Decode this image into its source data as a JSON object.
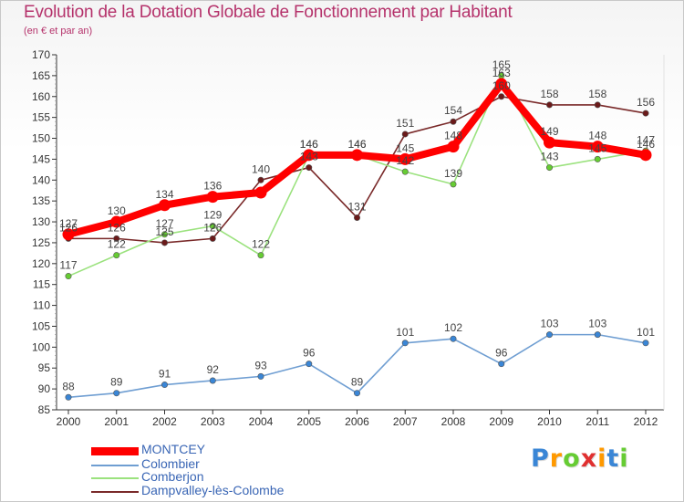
{
  "chart_data": {
    "type": "line",
    "title": "Evolution de la Dotation Globale de Fonctionnement par Habitant",
    "subtitle": "(en € et par an)",
    "categories": [
      "2000",
      "2001",
      "2002",
      "2003",
      "2004",
      "2005",
      "2006",
      "2007",
      "2008",
      "2009",
      "2010",
      "2011",
      "2012"
    ],
    "ylim": [
      85,
      170
    ],
    "yticks": [
      85,
      90,
      95,
      100,
      105,
      110,
      115,
      120,
      125,
      130,
      135,
      140,
      145,
      150,
      155,
      160,
      165,
      170
    ],
    "grid": false,
    "legend_position": "bottom-left",
    "series": [
      {
        "name": "MONTCEY",
        "color": "#ff0000",
        "marker": "#ff0000",
        "values": [
          127,
          130,
          134,
          136,
          137,
          146,
          146,
          145,
          148,
          163,
          149,
          148,
          146
        ],
        "labels": [
          "127",
          "130",
          "134",
          "136",
          "",
          "146",
          "146",
          "145",
          "148",
          "163",
          "149",
          "148",
          "146"
        ]
      },
      {
        "name": "Colombier",
        "color": "#6f9ed2",
        "marker": "#3a86d6",
        "values": [
          88,
          89,
          91,
          92,
          93,
          96,
          89,
          101,
          102,
          96,
          103,
          103,
          101
        ],
        "labels": [
          "88",
          "89",
          "91",
          "92",
          "93",
          "96",
          "89",
          "101",
          "102",
          "96",
          "103",
          "103",
          "101"
        ]
      },
      {
        "name": "Comberjon",
        "color": "#9be27e",
        "marker": "#66cc33",
        "values": [
          117,
          122,
          127,
          129,
          122,
          146,
          146,
          142,
          139,
          165,
          143,
          145,
          147
        ],
        "labels": [
          "117",
          "122",
          "127",
          "129",
          "122",
          "146",
          "146",
          "142",
          "139",
          "165",
          "143",
          "145",
          "147"
        ]
      },
      {
        "name": "Dampvalley-lès-Colombe",
        "color": "#7a2a2a",
        "marker": "#6b1a1a",
        "values": [
          126,
          126,
          125,
          126,
          140,
          143,
          131,
          151,
          154,
          160,
          158,
          158,
          156
        ],
        "labels": [
          "126",
          "126",
          "125",
          "126",
          "140",
          "143",
          "131",
          "151",
          "154",
          "160",
          "158",
          "158",
          "156"
        ]
      }
    ]
  },
  "logo": {
    "letters": [
      "P",
      "r",
      "o",
      "x",
      "i",
      "t",
      "i"
    ],
    "colors": [
      "#3a86d6",
      "#ff9900",
      "#66cc33",
      "#e03030",
      "#ff9900",
      "#3a86d6",
      "#66cc33"
    ]
  }
}
